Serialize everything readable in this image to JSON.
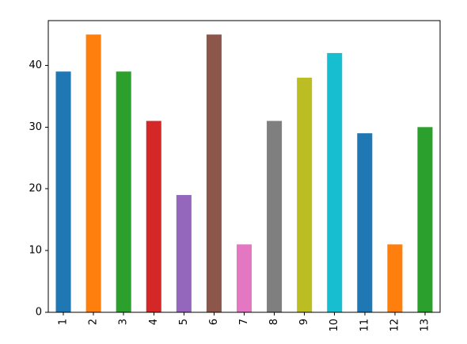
{
  "chart_data": {
    "type": "bar",
    "title": "",
    "xlabel": "",
    "ylabel": "",
    "categories": [
      "1",
      "2",
      "3",
      "4",
      "5",
      "6",
      "7",
      "8",
      "9",
      "10",
      "11",
      "12",
      "13"
    ],
    "values": [
      39,
      45,
      39,
      31,
      19,
      45,
      11,
      31,
      38,
      42,
      29,
      11,
      30
    ],
    "ylim": [
      0,
      47.25
    ],
    "yticks": [
      0,
      10,
      20,
      30,
      40
    ],
    "x_tick_rotation": "vertical",
    "grid": false,
    "legend": false,
    "bar_colors": [
      "#1f77b4",
      "#ff7f0e",
      "#2ca02c",
      "#d62728",
      "#9467bd",
      "#8c564b",
      "#e377c2",
      "#7f7f7f",
      "#bcbd22",
      "#17becf",
      "#1f77b4",
      "#ff7f0e",
      "#2ca02c"
    ]
  }
}
